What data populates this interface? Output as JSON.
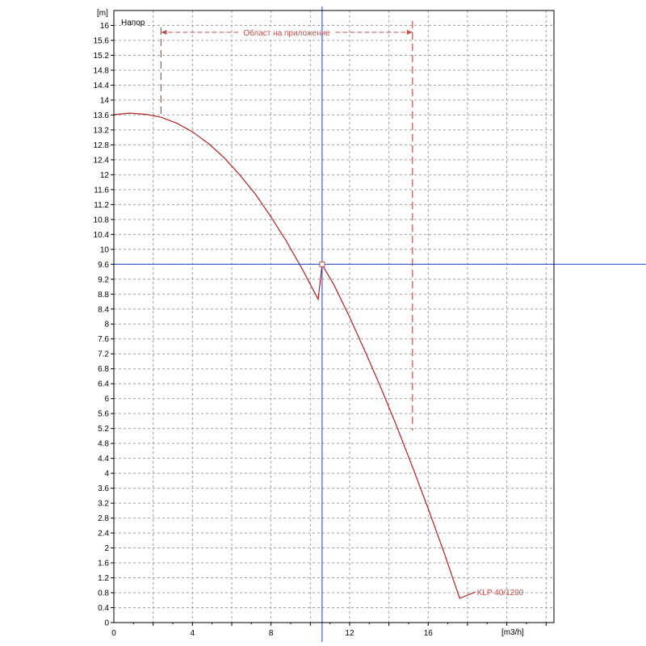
{
  "chart_data": {
    "type": "line",
    "title": "Напор",
    "ylabel": "[m]",
    "xlabel": "[m3/h]",
    "xlim": [
      0,
      22.4
    ],
    "ylim": [
      0,
      16.4
    ],
    "x_ticks": [
      0,
      4,
      8,
      12,
      16
    ],
    "y_ticks": [
      0,
      0.4,
      0.8,
      1.2,
      1.6,
      2,
      2.4,
      2.8,
      3.2,
      3.6,
      4,
      4.4,
      4.8,
      5.2,
      5.6,
      6,
      6.4,
      6.8,
      7.2,
      7.6,
      8,
      8.4,
      8.8,
      9.2,
      9.6,
      10,
      10.4,
      10.8,
      11.2,
      11.6,
      12,
      12.4,
      12.8,
      13.2,
      13.6,
      14,
      14.4,
      14.8,
      15.2,
      15.6,
      16
    ],
    "grid": true,
    "series": [
      {
        "name": "KLP 40/1200",
        "color": "#b22222",
        "x": [
          0,
          0.8,
          1.6,
          2.4,
          3.2,
          4.0,
          4.8,
          5.6,
          6.4,
          7.2,
          8.0,
          8.8,
          9.6,
          10.4,
          10.6,
          11.2,
          12.0,
          12.8,
          13.6,
          14.4,
          15.2,
          16.0,
          16.8,
          17.6,
          18.4
        ],
        "y": [
          13.61,
          13.65,
          13.62,
          13.54,
          13.38,
          13.15,
          12.84,
          12.46,
          12.0,
          11.48,
          10.87,
          10.2,
          9.46,
          8.66,
          9.59,
          9.05,
          8.18,
          7.25,
          6.28,
          5.25,
          4.17,
          3.05,
          1.88,
          0.65,
          0.82
        ]
      }
    ],
    "operating_point": {
      "x": 10.6,
      "y": 9.6,
      "color": "#c0504d"
    },
    "crosshair": {
      "x": 10.6,
      "y": 9.6,
      "color": "#1f3fbf"
    },
    "range": {
      "label": "Област на приложение",
      "x_min": 2.4,
      "x_max": 15.2,
      "color": "#c0504d"
    }
  }
}
